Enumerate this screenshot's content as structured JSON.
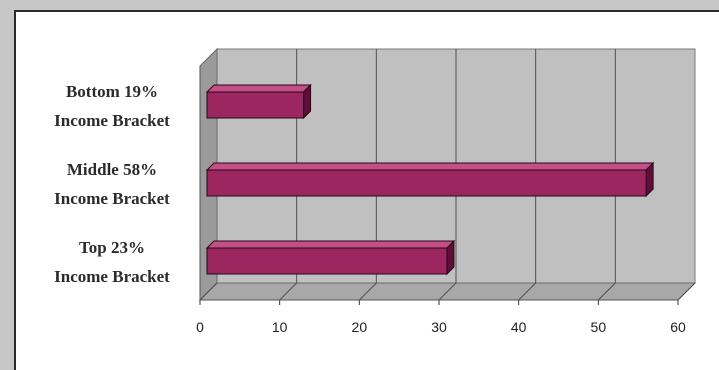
{
  "chart_data": {
    "type": "bar",
    "orientation": "horizontal",
    "style": "3d",
    "categories": [
      [
        "Bottom 19%",
        "Income Bracket"
      ],
      [
        "Middle 58%",
        "Income Bracket"
      ],
      [
        "Top 23%",
        "Income Bracket"
      ]
    ],
    "values": [
      13,
      56,
      31
    ],
    "xlim": [
      0,
      60
    ],
    "ticks": [
      "0",
      "10",
      "20",
      "30",
      "40",
      "50",
      "60"
    ],
    "grid": true,
    "legend": "none",
    "colors": {
      "bar_front": "#9b2660",
      "bar_top": "#c24f86",
      "bar_side": "#5e0f38",
      "plot_wall": "#c0c0c0",
      "floor": "#a8a8a8",
      "grid": "#505050"
    }
  }
}
